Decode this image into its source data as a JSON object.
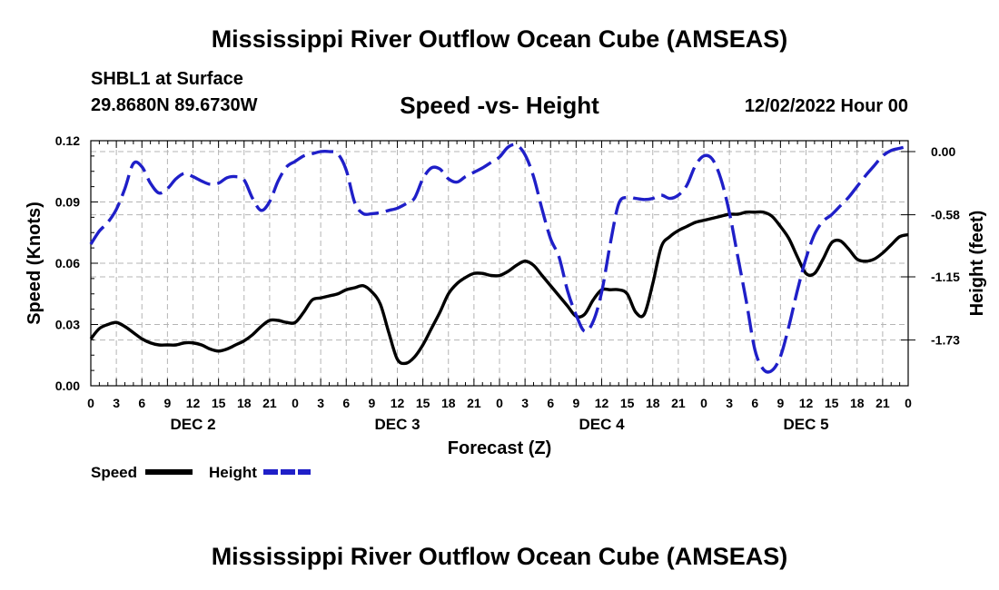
{
  "title": "Mississippi River Outflow Ocean Cube (AMSEAS)",
  "station": "SHBL1 at Surface",
  "location": "29.8680N  89.6730W",
  "subtitle": "Speed -vs- Height",
  "datetime": "12/02/2022 Hour 00",
  "bottom_title": "Mississippi River Outflow Ocean Cube (AMSEAS)",
  "chart_data": {
    "type": "line",
    "xlabel": "Forecast (Z)",
    "ylabel_left": "Speed (Knots)",
    "ylabel_right": "Height (feet)",
    "x_range_hours": [
      0,
      96
    ],
    "x_tick_labels": [
      "0",
      "3",
      "6",
      "9",
      "12",
      "15",
      "18",
      "21",
      "0",
      "3",
      "6",
      "9",
      "12",
      "15",
      "18",
      "21",
      "0",
      "3",
      "6",
      "9",
      "12",
      "15",
      "18",
      "21",
      "0",
      "3",
      "6",
      "9",
      "12",
      "15",
      "18",
      "21",
      "0"
    ],
    "day_labels": [
      "DEC 2",
      "DEC 3",
      "DEC 4",
      "DEC 5"
    ],
    "ylim_left": [
      0,
      0.12
    ],
    "y_ticks_left": [
      0.0,
      0.03,
      0.06,
      0.09,
      0.12
    ],
    "y_tick_labels_left": [
      "0.00",
      "0.03",
      "0.06",
      "0.09",
      "0.12"
    ],
    "ylim_right": [
      -2.15,
      0.1
    ],
    "y_ticks_right": [
      0.0,
      -0.58,
      -1.15,
      -1.73
    ],
    "y_tick_labels_right": [
      "0.00",
      "-0.58",
      "-1.15",
      "-1.73"
    ],
    "grid": true,
    "legend_position": "bottom-left",
    "series": [
      {
        "name": "Speed",
        "axis": "left",
        "color": "#000000",
        "style": "solid",
        "x": [
          0,
          1,
          2,
          3,
          4,
          5,
          6,
          7,
          8,
          9,
          10,
          11,
          12,
          13,
          14,
          15,
          16,
          17,
          18,
          19,
          20,
          21,
          22,
          23,
          24,
          25,
          26,
          27,
          28,
          29,
          30,
          31,
          32,
          33,
          34,
          35,
          36,
          37,
          38,
          39,
          40,
          41,
          42,
          43,
          44,
          45,
          46,
          47,
          48,
          49,
          50,
          51,
          52,
          53,
          54,
          55,
          56,
          57,
          58,
          59,
          60,
          61,
          62,
          63,
          64,
          65,
          66,
          67,
          68,
          69,
          70,
          71,
          72,
          73,
          74,
          75,
          76,
          77,
          78,
          79,
          80,
          81,
          82,
          83,
          84,
          85,
          86,
          87,
          88,
          89,
          90,
          91,
          92,
          93,
          94,
          95,
          96
        ],
        "values": [
          0.023,
          0.028,
          0.03,
          0.031,
          0.029,
          0.026,
          0.023,
          0.021,
          0.02,
          0.02,
          0.02,
          0.021,
          0.021,
          0.02,
          0.018,
          0.017,
          0.018,
          0.02,
          0.022,
          0.025,
          0.029,
          0.032,
          0.032,
          0.031,
          0.031,
          0.036,
          0.042,
          0.043,
          0.044,
          0.045,
          0.047,
          0.048,
          0.049,
          0.046,
          0.04,
          0.026,
          0.013,
          0.011,
          0.014,
          0.02,
          0.028,
          0.036,
          0.045,
          0.05,
          0.053,
          0.055,
          0.055,
          0.054,
          0.054,
          0.056,
          0.059,
          0.061,
          0.059,
          0.054,
          0.049,
          0.044,
          0.039,
          0.034,
          0.035,
          0.042,
          0.047,
          0.047,
          0.047,
          0.045,
          0.036,
          0.035,
          0.05,
          0.068,
          0.073,
          0.076,
          0.078,
          0.08,
          0.081,
          0.082,
          0.083,
          0.084,
          0.084,
          0.085,
          0.085,
          0.085,
          0.083,
          0.078,
          0.072,
          0.063,
          0.055,
          0.055,
          0.062,
          0.07,
          0.071,
          0.067,
          0.062,
          0.061,
          0.062,
          0.065,
          0.069,
          0.073,
          0.074
        ]
      },
      {
        "name": "Height",
        "axis": "right",
        "color": "#1f1fc8",
        "style": "dashed",
        "x": [
          0,
          1,
          2,
          3,
          4,
          5,
          6,
          7,
          8,
          9,
          10,
          11,
          12,
          13,
          14,
          15,
          16,
          17,
          18,
          19,
          20,
          21,
          22,
          23,
          24,
          25,
          26,
          27,
          28,
          29,
          30,
          31,
          32,
          33,
          34,
          35,
          36,
          37,
          38,
          39,
          40,
          41,
          42,
          43,
          44,
          45,
          46,
          47,
          48,
          49,
          50,
          51,
          52,
          53,
          54,
          55,
          56,
          57,
          58,
          59,
          60,
          61,
          62,
          63,
          64,
          65,
          66,
          67,
          68,
          69,
          70,
          71,
          72,
          73,
          74,
          75,
          76,
          77,
          78,
          79,
          80,
          81,
          82,
          83,
          84,
          85,
          86,
          87,
          88,
          89,
          90,
          91,
          92,
          93,
          94,
          95,
          96
        ],
        "values": [
          -0.85,
          -0.73,
          -0.65,
          -0.53,
          -0.34,
          -0.11,
          -0.14,
          -0.29,
          -0.38,
          -0.34,
          -0.25,
          -0.2,
          -0.23,
          -0.27,
          -0.3,
          -0.29,
          -0.24,
          -0.23,
          -0.26,
          -0.43,
          -0.54,
          -0.46,
          -0.27,
          -0.14,
          -0.09,
          -0.04,
          -0.02,
          0.0,
          0.0,
          -0.02,
          -0.17,
          -0.47,
          -0.57,
          -0.57,
          -0.56,
          -0.54,
          -0.52,
          -0.48,
          -0.43,
          -0.25,
          -0.15,
          -0.16,
          -0.25,
          -0.28,
          -0.23,
          -0.19,
          -0.15,
          -0.1,
          -0.05,
          0.04,
          0.06,
          -0.03,
          -0.23,
          -0.53,
          -0.8,
          -0.97,
          -1.28,
          -1.5,
          -1.65,
          -1.56,
          -1.29,
          -0.85,
          -0.48,
          -0.42,
          -0.43,
          -0.44,
          -0.43,
          -0.4,
          -0.43,
          -0.4,
          -0.31,
          -0.13,
          -0.04,
          -0.07,
          -0.25,
          -0.56,
          -0.97,
          -1.38,
          -1.82,
          -2.0,
          -2.01,
          -1.88,
          -1.6,
          -1.27,
          -0.98,
          -0.76,
          -0.64,
          -0.58,
          -0.5,
          -0.42,
          -0.32,
          -0.22,
          -0.13,
          -0.04,
          0.01,
          0.03,
          0.05
        ]
      }
    ]
  },
  "legend": [
    {
      "label": "Speed",
      "color": "#000000",
      "style": "solid"
    },
    {
      "label": "Height",
      "color": "#1f1fc8",
      "style": "dashed"
    }
  ]
}
